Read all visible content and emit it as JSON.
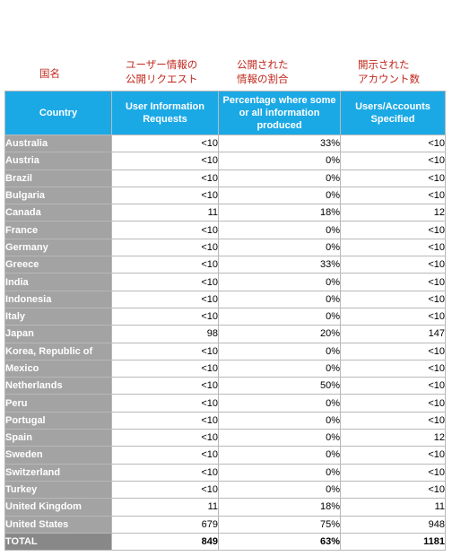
{
  "jp_headers": {
    "country": "国名",
    "requests": "ユーザー情報の\n公開リクエスト",
    "percentage": "公開された\n情報の割合",
    "accounts": "開示された\nアカウント数"
  },
  "columns": {
    "country": "Country",
    "requests": "User Information Requests",
    "percentage": "Percentage where some or all information produced",
    "accounts": "Users/Accounts Specified"
  },
  "rows": [
    {
      "country": "Australia",
      "requests": "<10",
      "percentage": "33%",
      "accounts": "<10"
    },
    {
      "country": "Austria",
      "requests": "<10",
      "percentage": "0%",
      "accounts": "<10"
    },
    {
      "country": "Brazil",
      "requests": "<10",
      "percentage": "0%",
      "accounts": "<10"
    },
    {
      "country": "Bulgaria",
      "requests": "<10",
      "percentage": "0%",
      "accounts": "<10"
    },
    {
      "country": "Canada",
      "requests": "11",
      "percentage": "18%",
      "accounts": "12"
    },
    {
      "country": "France",
      "requests": "<10",
      "percentage": "0%",
      "accounts": "<10"
    },
    {
      "country": "Germany",
      "requests": "<10",
      "percentage": "0%",
      "accounts": "<10"
    },
    {
      "country": "Greece",
      "requests": "<10",
      "percentage": "33%",
      "accounts": "<10"
    },
    {
      "country": "India",
      "requests": "<10",
      "percentage": "0%",
      "accounts": "<10"
    },
    {
      "country": "Indonesia",
      "requests": "<10",
      "percentage": "0%",
      "accounts": "<10"
    },
    {
      "country": "Italy",
      "requests": "<10",
      "percentage": "0%",
      "accounts": "<10"
    },
    {
      "country": "Japan",
      "requests": "98",
      "percentage": "20%",
      "accounts": "147"
    },
    {
      "country": "Korea, Republic of",
      "requests": "<10",
      "percentage": "0%",
      "accounts": "<10"
    },
    {
      "country": "Mexico",
      "requests": "<10",
      "percentage": "0%",
      "accounts": "<10"
    },
    {
      "country": "Netherlands",
      "requests": "<10",
      "percentage": "50%",
      "accounts": "<10"
    },
    {
      "country": "Peru",
      "requests": "<10",
      "percentage": "0%",
      "accounts": "<10"
    },
    {
      "country": "Portugal",
      "requests": "<10",
      "percentage": "0%",
      "accounts": "<10"
    },
    {
      "country": "Spain",
      "requests": "<10",
      "percentage": "0%",
      "accounts": "12"
    },
    {
      "country": "Sweden",
      "requests": "<10",
      "percentage": "0%",
      "accounts": "<10"
    },
    {
      "country": "Switzerland",
      "requests": "<10",
      "percentage": "0%",
      "accounts": "<10"
    },
    {
      "country": "Turkey",
      "requests": "<10",
      "percentage": "0%",
      "accounts": "<10"
    },
    {
      "country": "United Kingdom",
      "requests": "11",
      "percentage": "18%",
      "accounts": "11"
    },
    {
      "country": "United States",
      "requests": "679",
      "percentage": "75%",
      "accounts": "948"
    }
  ],
  "total": {
    "country": "TOTAL",
    "requests": "849",
    "percentage": "63%",
    "accounts": "1181"
  },
  "colors": {
    "header_bg": "#1ba9e6",
    "country_bg": "#a3a3a3",
    "jp_text": "#c0281e"
  }
}
